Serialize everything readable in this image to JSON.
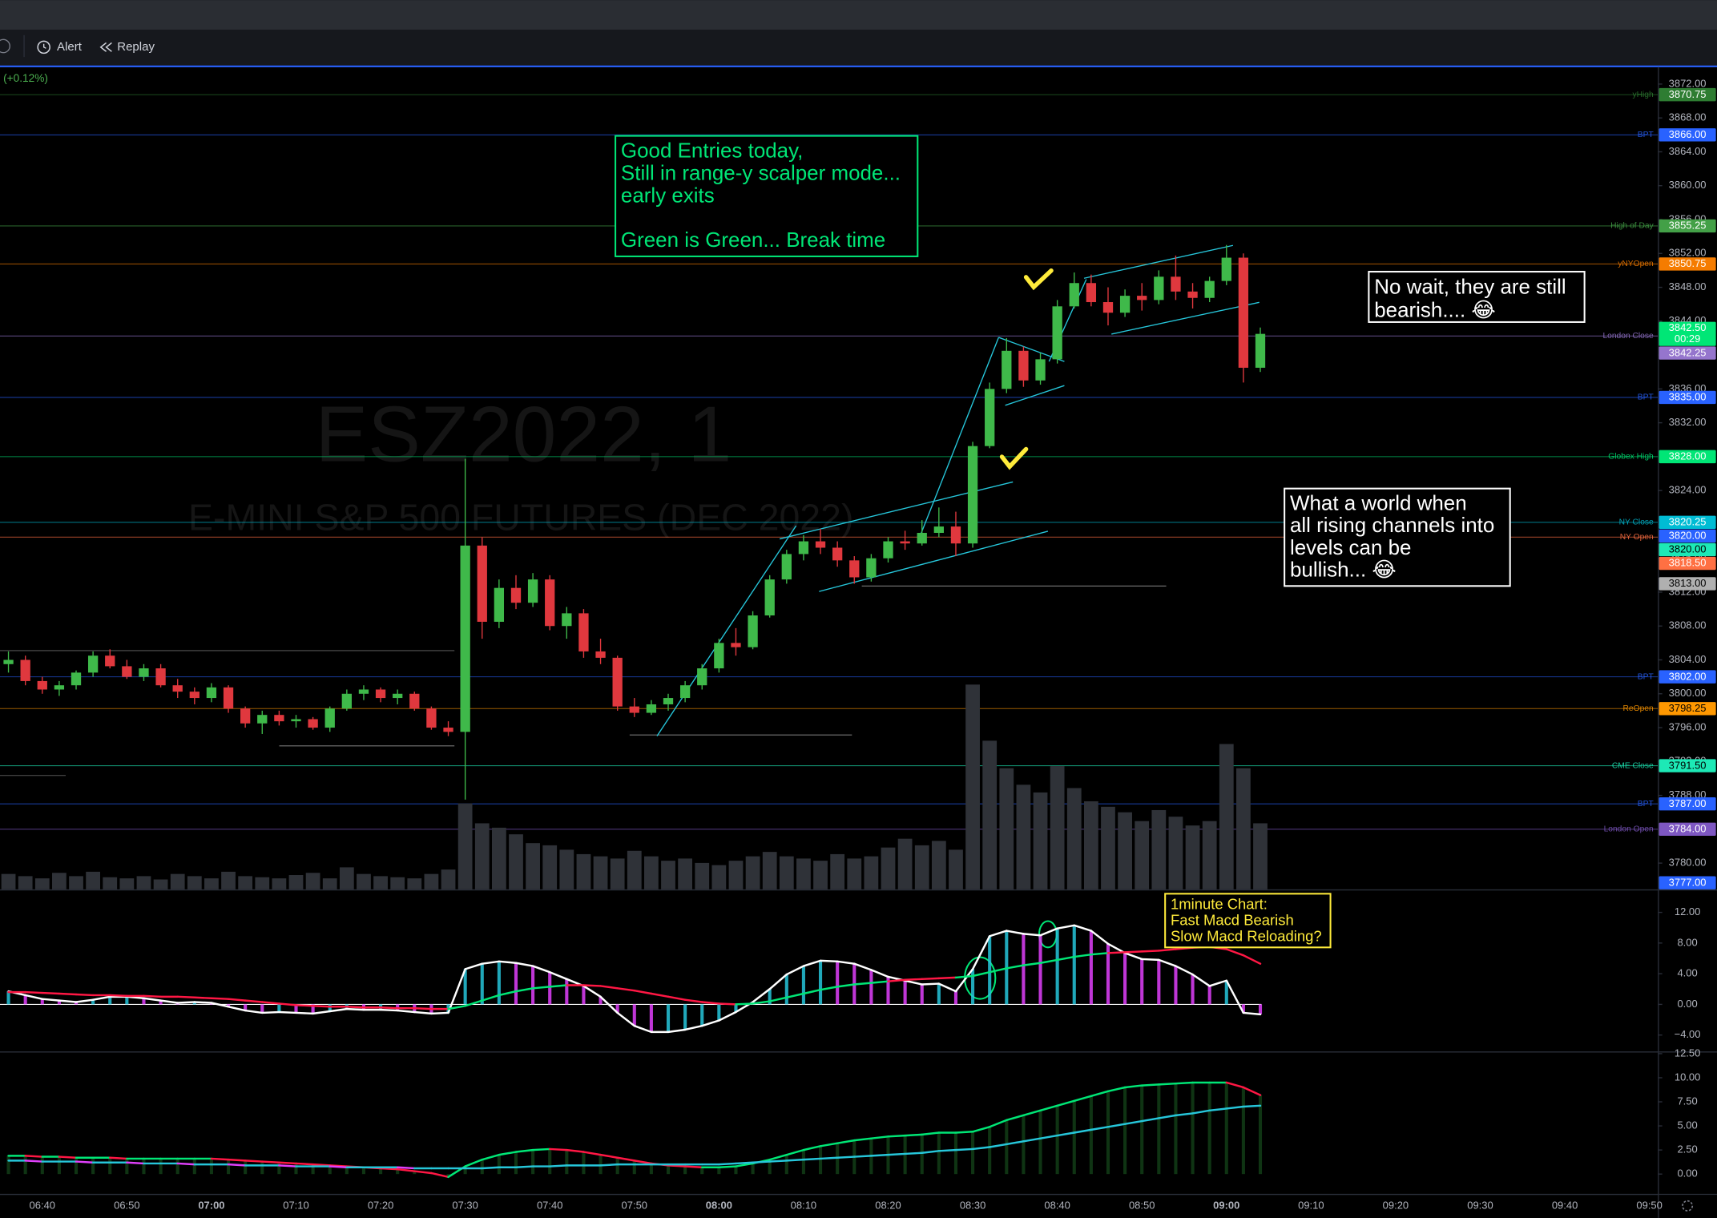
{
  "toolbar": {
    "items": [
      "Alert",
      "Replay"
    ]
  },
  "header": {
    "change": "(+0.12%)"
  },
  "watermark": {
    "symbol": "ESZ2022, 1",
    "description": "E-MINI S&P 500 FUTURES (DEC 2022)"
  },
  "chart_data": [
    {
      "type": "candlestick",
      "x_start": "06:36",
      "x_step_minutes": 2,
      "xlim": [
        "06:35",
        "09:51"
      ],
      "xticks": [
        "06:40",
        "06:50",
        "07:00",
        "07:10",
        "07:20",
        "07:30",
        "07:40",
        "07:50",
        "08:00",
        "08:10",
        "08:20",
        "08:30",
        "08:40",
        "08:50",
        "09:00",
        "09:10",
        "09:20",
        "09:30",
        "09:40",
        "09:50"
      ],
      "ylim": [
        3776.9,
        3873.9
      ],
      "yticks": [
        {
          "value": 3780,
          "label": "3780.00"
        },
        {
          "value": 3784,
          "label": "3784.00"
        },
        {
          "value": 3788,
          "label": "3788.00"
        },
        {
          "value": 3792,
          "label": "3792.00"
        },
        {
          "value": 3796,
          "label": "3796.00"
        },
        {
          "value": 3800,
          "label": "3800.00"
        },
        {
          "value": 3804,
          "label": "3804.00"
        },
        {
          "value": 3808,
          "label": "3808.00"
        },
        {
          "value": 3812,
          "label": "3812.00"
        },
        {
          "value": 3816,
          "label": "3816.00"
        },
        {
          "value": 3820,
          "label": "3820.00"
        },
        {
          "value": 3824,
          "label": "3824.00"
        },
        {
          "value": 3828,
          "label": "3828.00"
        },
        {
          "value": 3832,
          "label": "3832.00"
        },
        {
          "value": 3836,
          "label": "3836.00"
        },
        {
          "value": 3840,
          "label": "3840.00"
        },
        {
          "value": 3844,
          "label": "3844.00"
        },
        {
          "value": 3848,
          "label": "3848.00"
        },
        {
          "value": 3852,
          "label": "3852.00"
        },
        {
          "value": 3856,
          "label": "3856.00"
        },
        {
          "value": 3860,
          "label": "3860.00"
        },
        {
          "value": 3864,
          "label": "3864.00"
        },
        {
          "value": 3868,
          "label": "3868.00"
        },
        {
          "value": 3872,
          "label": "3872.00"
        }
      ],
      "up_color": "#3fb94a",
      "down_color": "#e0383e",
      "volume_color": "#2f3238",
      "candles": {
        "open": [
          3803.5,
          3804,
          3801.5,
          3800.5,
          3801,
          3802.5,
          3804.5,
          3803.25,
          3802,
          3803,
          3801,
          3800.25,
          3799.5,
          3800.75,
          3798.25,
          3796.5,
          3797.5,
          3796.75,
          3797,
          3796,
          3798.25,
          3800,
          3800.5,
          3799.5,
          3800,
          3798.25,
          3796,
          3795.5,
          3817.5,
          3808.5,
          3812.5,
          3810.75,
          3813.5,
          3808,
          3809.5,
          3805,
          3804.25,
          3798.5,
          3797.75,
          3798.75,
          3799.5,
          3801,
          3803,
          3806,
          3805.5,
          3809.25,
          3813.5,
          3816.5,
          3818,
          3817.25,
          3815.75,
          3813.75,
          3816,
          3818,
          3817.75,
          3819,
          3819.75,
          3817.75,
          3829.25,
          3836,
          3840.5,
          3837,
          3839.5,
          3845.75,
          3848.5,
          3846.25,
          3845,
          3847,
          3846.5,
          3849.25,
          3847.5,
          3846.75,
          3848.75,
          3851.5,
          3838.5
        ],
        "high": [
          3805,
          3804.5,
          3802,
          3801.5,
          3802.75,
          3805,
          3805.25,
          3804,
          3803.5,
          3803.5,
          3801.75,
          3800.75,
          3801.25,
          3801,
          3798.5,
          3798,
          3798,
          3797.5,
          3797.25,
          3798.5,
          3800.5,
          3801,
          3800.75,
          3800.5,
          3800.25,
          3798.5,
          3796.75,
          3827.75,
          3818.5,
          3813.5,
          3814,
          3814.25,
          3814,
          3810.25,
          3810,
          3806.5,
          3804.5,
          3799.5,
          3799.25,
          3800,
          3801.5,
          3803.5,
          3806.5,
          3807.75,
          3809.75,
          3814,
          3817,
          3818.75,
          3819.5,
          3818,
          3816.25,
          3816.5,
          3818.5,
          3819.25,
          3820.5,
          3822,
          3821.5,
          3829.75,
          3836.75,
          3842,
          3841,
          3840.25,
          3846.5,
          3849.75,
          3849.5,
          3848,
          3847.75,
          3848.5,
          3850,
          3851.75,
          3848.5,
          3849.25,
          3853,
          3852,
          3843.25
        ],
        "low": [
          3802.5,
          3801,
          3800,
          3799.75,
          3800.5,
          3802,
          3803,
          3801.75,
          3801.5,
          3800.75,
          3799.5,
          3798.75,
          3799,
          3797.75,
          3796,
          3795.25,
          3796.25,
          3796,
          3795.75,
          3795.5,
          3798,
          3799.25,
          3799,
          3798.75,
          3798,
          3795.75,
          3795,
          3787.5,
          3806.5,
          3807.75,
          3810,
          3810.25,
          3807.5,
          3806.5,
          3804.25,
          3803.5,
          3798,
          3797.25,
          3797.5,
          3798,
          3799,
          3800.5,
          3802.5,
          3804.5,
          3805.25,
          3809,
          3813,
          3815.75,
          3816.5,
          3815,
          3813,
          3813.25,
          3815.5,
          3817,
          3817.5,
          3818.5,
          3816.25,
          3817.25,
          3829,
          3835.5,
          3836.25,
          3836.5,
          3839,
          3845.5,
          3845.75,
          3843.5,
          3844.5,
          3845.25,
          3846,
          3846.5,
          3845.5,
          3846.25,
          3848.25,
          3836.75,
          3838
        ],
        "close": [
          3804,
          3801.5,
          3800.5,
          3801,
          3802.5,
          3804.5,
          3803.25,
          3802,
          3803,
          3801,
          3800.25,
          3799.5,
          3800.75,
          3798.25,
          3796.5,
          3797.5,
          3796.75,
          3797,
          3796,
          3798.25,
          3800,
          3800.5,
          3799.5,
          3800,
          3798.25,
          3796,
          3795.5,
          3817.5,
          3808.5,
          3812.5,
          3810.75,
          3813.5,
          3808,
          3809.5,
          3805,
          3804.25,
          3798.5,
          3797.75,
          3798.75,
          3799.5,
          3801,
          3803,
          3806,
          3805.5,
          3809.25,
          3813.5,
          3816.5,
          3818,
          3817.25,
          3815.75,
          3813.75,
          3816,
          3818,
          3817.75,
          3819,
          3819.75,
          3817.75,
          3829.25,
          3836,
          3840.5,
          3837,
          3839.5,
          3845.75,
          3848.5,
          3846.25,
          3845,
          3847,
          3846.5,
          3849.25,
          3847.5,
          3846.75,
          3848.75,
          3851.5,
          3838.5,
          3842.5
        ]
      },
      "volume": [
        14,
        12,
        10,
        15,
        12,
        16,
        11,
        10,
        12,
        9,
        14,
        12,
        10,
        16,
        12,
        11,
        10,
        13,
        15,
        10,
        20,
        14,
        12,
        11,
        10,
        14,
        18,
        78,
        60,
        56,
        50,
        42,
        40,
        36,
        32,
        30,
        28,
        35,
        30,
        26,
        28,
        24,
        22,
        26,
        30,
        34,
        30,
        28,
        26,
        32,
        28,
        30,
        38,
        46,
        40,
        44,
        36,
        186,
        135,
        110,
        95,
        88,
        112,
        92,
        80,
        75,
        70,
        62,
        72,
        66,
        58,
        62,
        132,
        110,
        60
      ],
      "levels": [
        {
          "label": "yHigh",
          "price": 3870.75,
          "price_label": "3870.75",
          "color": "#2e7d32"
        },
        {
          "label": "BPT",
          "price": 3866,
          "price_label": "3866.00",
          "color": "#2962ff"
        },
        {
          "label": "High of Day",
          "price": 3855.25,
          "price_label": "3855.25",
          "color": "#43a047"
        },
        {
          "label": "yNYOpen",
          "price": 3850.75,
          "price_label": "3850.75",
          "color": "#f57c00"
        },
        {
          "label": "London Close",
          "price": 3842.25,
          "price_label": "3842.25",
          "color": "#9575cd"
        },
        {
          "label": "BPT",
          "price": 3835,
          "price_label": "3835.00",
          "color": "#2962ff"
        },
        {
          "label": "Globex High",
          "price": 3828,
          "price_label": "3828.00",
          "color": "#00e676"
        },
        {
          "label": "NY Close",
          "price": 3820.25,
          "price_label": "3820.25",
          "color": "#00bcd4"
        },
        {
          "price": 3820,
          "price_label": "3820.00",
          "color": "#2962ff"
        },
        {
          "price": 3820,
          "price_label": "3820.00",
          "color": "#1de9b6"
        },
        {
          "label": "NY Open",
          "price": 3818.5,
          "price_label": "3818.50",
          "color": "#ff7043"
        },
        {
          "price": 3813,
          "price_label": "3813.00",
          "color": "#b0b0b0"
        },
        {
          "label": "BPT",
          "price": 3802,
          "price_label": "3802.00",
          "color": "#2962ff"
        },
        {
          "label": "ReOpen",
          "price": 3798.25,
          "price_label": "3798.25",
          "color": "#ff9800"
        },
        {
          "label": "CME Close",
          "price": 3791.5,
          "price_label": "3791.50",
          "color": "#1de9b6"
        },
        {
          "label": "BPT",
          "price": 3787,
          "price_label": "3787.00",
          "color": "#2962ff"
        },
        {
          "label": "London Open",
          "price": 3784,
          "price_label": "3784.00",
          "color": "#7e57c2"
        },
        {
          "price": 3777,
          "price_label": "3777.00",
          "color": "#2962ff"
        }
      ],
      "current_price": {
        "value": 3842.5,
        "label": "3842.50",
        "countdown": "00:29",
        "color": "#00e676"
      },
      "annotations": [
        {
          "paragraphs": [
            [
              "Good Entries today,",
              "Still in range-y scalper mode...",
              "early exits"
            ],
            [
              "Green is Green... Break time"
            ]
          ],
          "color": "#00e676"
        },
        {
          "paragraphs": [
            [
              "No wait,  they are still",
              "bearish....     😂"
            ]
          ],
          "color": "#ffffff"
        },
        {
          "paragraphs": [
            [
              "What a world when",
              "all rising channels into",
              "levels can be",
              "bullish... 😂"
            ]
          ],
          "color": "#ffffff"
        },
        {
          "paragraphs": [
            [
              "1minute Chart:",
              "Fast Macd Bearish",
              "Slow Macd Reloading?"
            ]
          ],
          "color": "#ffeb3b"
        }
      ]
    },
    {
      "type": "macd",
      "x_start": "06:36",
      "x_step_minutes": 2,
      "ylim": [
        -6.14,
        15
      ],
      "yticks": [
        {
          "value": 12,
          "label": "12.00"
        },
        {
          "value": 8,
          "label": "8.00"
        },
        {
          "value": 4,
          "label": "4.00"
        },
        {
          "value": 0,
          "label": "0.00"
        },
        {
          "value": -4,
          "label": "−4.00"
        }
      ],
      "zero_line": true,
      "histogram_colors": [
        "#26c6da",
        "#e040fb"
      ],
      "series": [
        {
          "color": "#ffffff",
          "values": [
            1.7,
            1.2,
            0.7,
            0.5,
            0.3,
            0.6,
            1.0,
            1.0,
            0.8,
            0.5,
            0.2,
            0.3,
            0.2,
            -0.3,
            -0.8,
            -1.1,
            -1.0,
            -1.1,
            -1.2,
            -0.9,
            -0.6,
            -0.7,
            -0.7,
            -0.8,
            -1.0,
            -1.2,
            -1.1,
            4.6,
            5.3,
            5.6,
            5.4,
            5.0,
            4.2,
            3.3,
            2.4,
            1.0,
            -1.1,
            -2.8,
            -3.6,
            -3.6,
            -3.3,
            -2.8,
            -2.1,
            -1.0,
            0.3,
            2.0,
            3.9,
            5.0,
            5.7,
            5.6,
            5.3,
            4.5,
            3.6,
            3.1,
            2.6,
            2.7,
            1.7,
            4.6,
            8.9,
            9.6,
            9.2,
            9.0,
            9.9,
            10.3,
            9.6,
            7.9,
            6.7,
            5.9,
            5.8,
            5.0,
            3.9,
            2.4,
            3.1,
            -1.1,
            -1.3
          ]
        },
        {
          "color_by": "crossing",
          "up_color": "#00e676",
          "down_color": "#ff1744",
          "values": [
            1.6,
            1.6,
            1.5,
            1.4,
            1.3,
            1.2,
            1.2,
            1.1,
            1.1,
            1.0,
            1.0,
            0.9,
            0.8,
            0.7,
            0.5,
            0.3,
            0.1,
            -0.1,
            -0.2,
            -0.3,
            -0.3,
            -0.4,
            -0.4,
            -0.5,
            -0.5,
            -0.6,
            -0.6,
            -0.2,
            0.5,
            1.2,
            1.7,
            2.1,
            2.3,
            2.5,
            2.5,
            2.4,
            2.1,
            1.8,
            1.4,
            1.0,
            0.6,
            0.3,
            0.1,
            0.0,
            0.1,
            0.4,
            0.9,
            1.4,
            1.9,
            2.3,
            2.6,
            2.8,
            3.0,
            3.2,
            3.3,
            3.4,
            3.5,
            3.7,
            4.2,
            4.7,
            5.1,
            5.4,
            5.8,
            6.2,
            6.5,
            6.7,
            6.8,
            6.9,
            7.0,
            7.2,
            7.4,
            7.5,
            7.2,
            6.4,
            5.3
          ]
        }
      ]
    },
    {
      "type": "macd",
      "x_start": "06:36",
      "x_step_minutes": 2,
      "ylim": [
        -2.05,
        12.73
      ],
      "yticks": [
        {
          "value": 12.5,
          "label": "12.50"
        },
        {
          "value": 10,
          "label": "10.00"
        },
        {
          "value": 7.5,
          "label": "7.50"
        },
        {
          "value": 5,
          "label": "5.00"
        },
        {
          "value": 2.5,
          "label": "2.50"
        },
        {
          "value": 0,
          "label": "0.00"
        }
      ],
      "zero_line": false,
      "histogram_colors": [
        "#123d16",
        "#123d16"
      ],
      "series": [
        {
          "color_by": "slope",
          "up_color": "#00e676",
          "down_color": "#ff1744",
          "values": [
            1.9,
            1.9,
            1.8,
            1.8,
            1.7,
            1.7,
            1.7,
            1.6,
            1.6,
            1.6,
            1.6,
            1.6,
            1.6,
            1.5,
            1.4,
            1.3,
            1.2,
            1.1,
            1.0,
            0.9,
            0.8,
            0.7,
            0.6,
            0.5,
            0.3,
            0.1,
            -0.3,
            0.8,
            1.5,
            2.0,
            2.3,
            2.5,
            2.6,
            2.5,
            2.3,
            2.0,
            1.7,
            1.4,
            1.1,
            0.9,
            0.8,
            0.7,
            0.7,
            0.8,
            1.1,
            1.5,
            2.0,
            2.5,
            2.9,
            3.2,
            3.5,
            3.7,
            3.9,
            4.0,
            4.1,
            4.3,
            4.3,
            4.4,
            4.9,
            5.6,
            6.1,
            6.6,
            7.1,
            7.6,
            8.1,
            8.6,
            9.0,
            9.2,
            9.3,
            9.4,
            9.5,
            9.5,
            9.5,
            9.0,
            8.2
          ]
        },
        {
          "color_by": "slope",
          "up_color": "#26c6da",
          "down_color": "#e040fb",
          "values": [
            1.4,
            1.4,
            1.3,
            1.3,
            1.3,
            1.2,
            1.2,
            1.2,
            1.1,
            1.1,
            1.1,
            1.0,
            1.0,
            1.0,
            0.9,
            0.9,
            0.9,
            0.8,
            0.8,
            0.8,
            0.7,
            0.7,
            0.7,
            0.7,
            0.6,
            0.6,
            0.6,
            0.6,
            0.6,
            0.7,
            0.7,
            0.8,
            0.8,
            0.9,
            0.9,
            0.9,
            1.0,
            1.0,
            1.0,
            1.0,
            1.0,
            1.0,
            1.0,
            1.1,
            1.2,
            1.3,
            1.4,
            1.5,
            1.6,
            1.7,
            1.8,
            1.9,
            2.0,
            2.1,
            2.2,
            2.4,
            2.5,
            2.6,
            2.8,
            3.1,
            3.4,
            3.7,
            4.0,
            4.3,
            4.6,
            4.9,
            5.2,
            5.5,
            5.8,
            6.1,
            6.3,
            6.6,
            6.8,
            7.0,
            7.1
          ]
        }
      ]
    }
  ]
}
